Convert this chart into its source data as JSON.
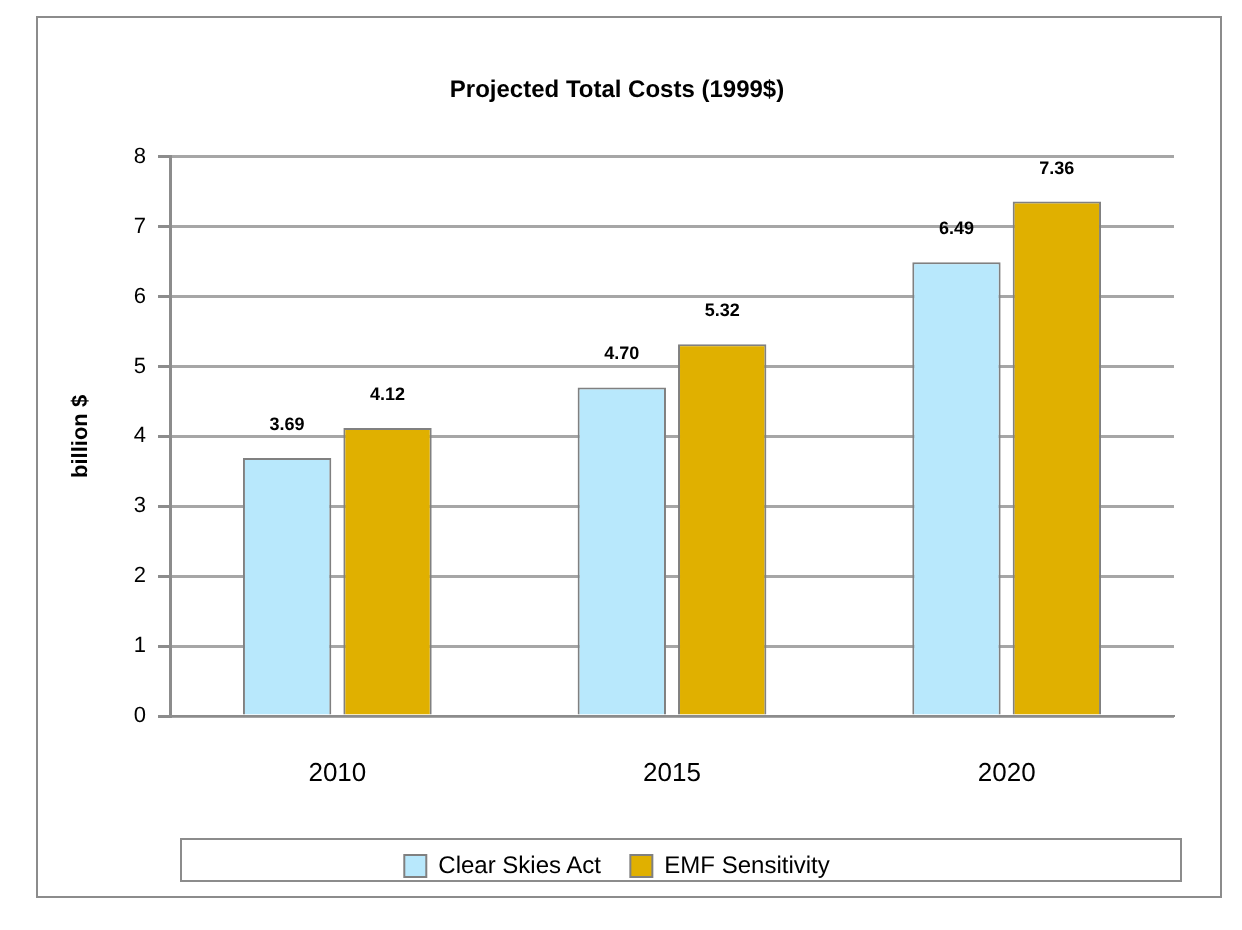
{
  "chart_data": {
    "type": "bar",
    "title": "Projected Total Costs (1999$)",
    "ylabel": "billion $",
    "categories": [
      "2010",
      "2015",
      "2020"
    ],
    "series": [
      {
        "name": "Clear Skies Act",
        "color": "#b8e8fc",
        "values": [
          3.69,
          4.7,
          6.49
        ],
        "value_labels": [
          "3.69",
          "4.70",
          "6.49"
        ]
      },
      {
        "name": "EMF Sensitivity",
        "color": "#e0b000",
        "values": [
          4.12,
          5.32,
          7.36
        ],
        "value_labels": [
          "4.12",
          "5.32",
          "7.36"
        ]
      }
    ],
    "ylim": [
      0,
      8
    ],
    "yticks": [
      0,
      1,
      2,
      3,
      4,
      5,
      6,
      7,
      8
    ],
    "grid": "y",
    "legend": "bottom"
  }
}
